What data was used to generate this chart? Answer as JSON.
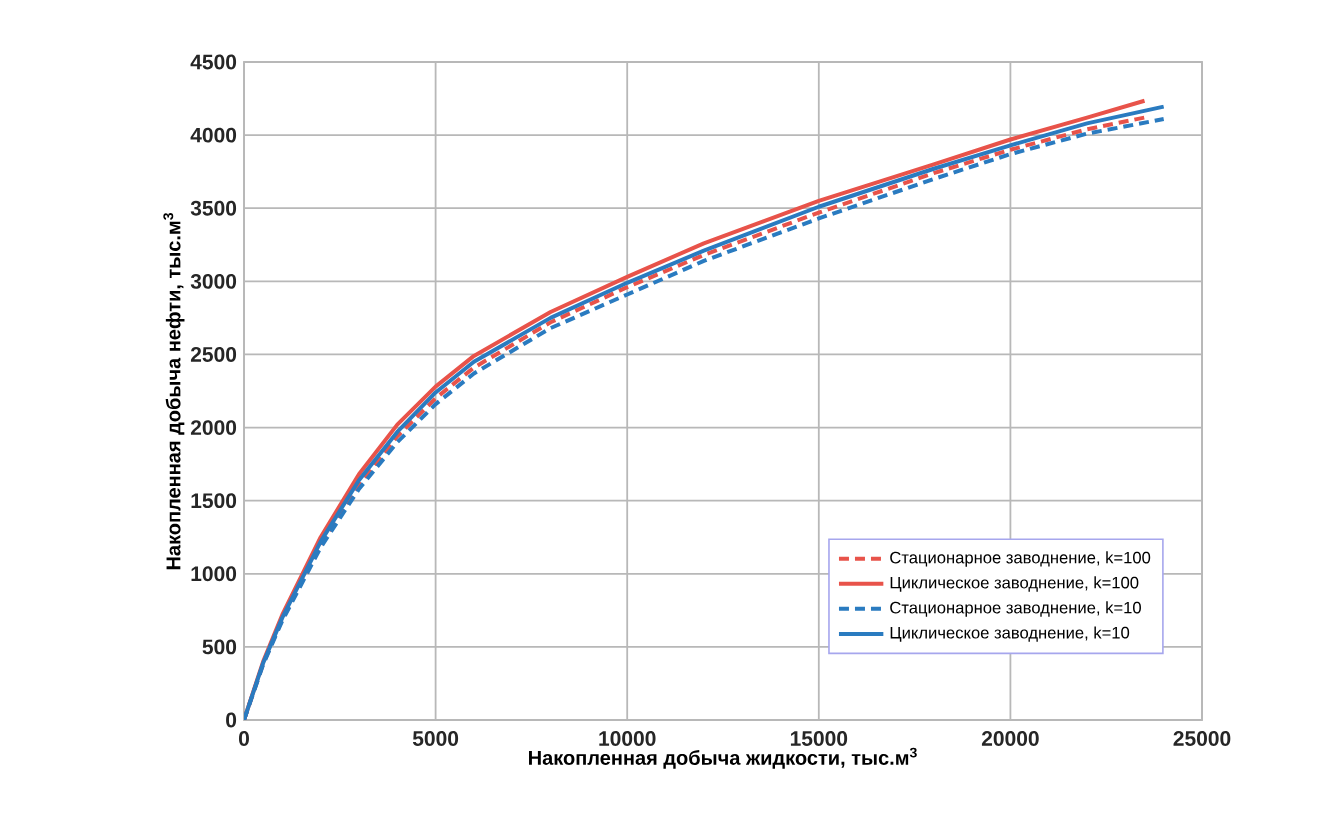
{
  "chart_data": {
    "type": "line",
    "xlabel": "Накопленная добыча жидкости, тыс.м$^{3}$",
    "ylabel": "Накопленная добыча нефти, тыс.м$^{3}$",
    "xlim": [
      0,
      25000
    ],
    "ylim": [
      0,
      4500
    ],
    "xticks": [
      0,
      5000,
      10000,
      15000,
      20000,
      25000
    ],
    "yticks": [
      0,
      500,
      1000,
      1500,
      2000,
      2500,
      3000,
      3500,
      4000,
      4500
    ],
    "grid": true,
    "legend": "bottom right",
    "marker": "none",
    "series": [
      {
        "name": "Стационарное заводнение, k=100",
        "color": "#e8534a",
        "line_style": "dashed",
        "x": [
          0,
          500,
          1000,
          2000,
          3000,
          4000,
          5000,
          6000,
          8000,
          10000,
          12000,
          15000,
          18000,
          20000,
          22000,
          23500
        ],
        "values": [
          0,
          385,
          690,
          1200,
          1610,
          1940,
          2200,
          2410,
          2720,
          2960,
          3180,
          3470,
          3740,
          3900,
          4040,
          4120
        ]
      },
      {
        "name": "Циклическое заводнение, k=100",
        "color": "#e8534a",
        "line_style": "solid",
        "x": [
          0,
          500,
          1000,
          2000,
          3000,
          4000,
          5000,
          6000,
          8000,
          10000,
          12000,
          15000,
          18000,
          20000,
          22000,
          23500
        ],
        "values": [
          0,
          400,
          720,
          1250,
          1680,
          2020,
          2280,
          2490,
          2790,
          3030,
          3260,
          3550,
          3800,
          3970,
          4120,
          4235
        ]
      },
      {
        "name": "Стационарное заводнение, k=10",
        "color": "#2a7bc0",
        "line_style": "dashed",
        "x": [
          0,
          500,
          1000,
          2000,
          3000,
          4000,
          5000,
          6000,
          8000,
          10000,
          12000,
          15000,
          18000,
          20000,
          22000,
          24000
        ],
        "values": [
          0,
          380,
          680,
          1180,
          1580,
          1900,
          2160,
          2370,
          2680,
          2910,
          3140,
          3430,
          3700,
          3870,
          4010,
          4110
        ]
      },
      {
        "name": "Циклическое заводнение, k=10",
        "color": "#2a7bc0",
        "line_style": "solid",
        "x": [
          0,
          500,
          1000,
          2000,
          3000,
          4000,
          5000,
          6000,
          8000,
          10000,
          12000,
          15000,
          18000,
          20000,
          22000,
          24000
        ],
        "values": [
          0,
          390,
          700,
          1220,
          1640,
          1970,
          2240,
          2450,
          2750,
          2990,
          3210,
          3510,
          3770,
          3930,
          4080,
          4195
        ]
      }
    ]
  }
}
